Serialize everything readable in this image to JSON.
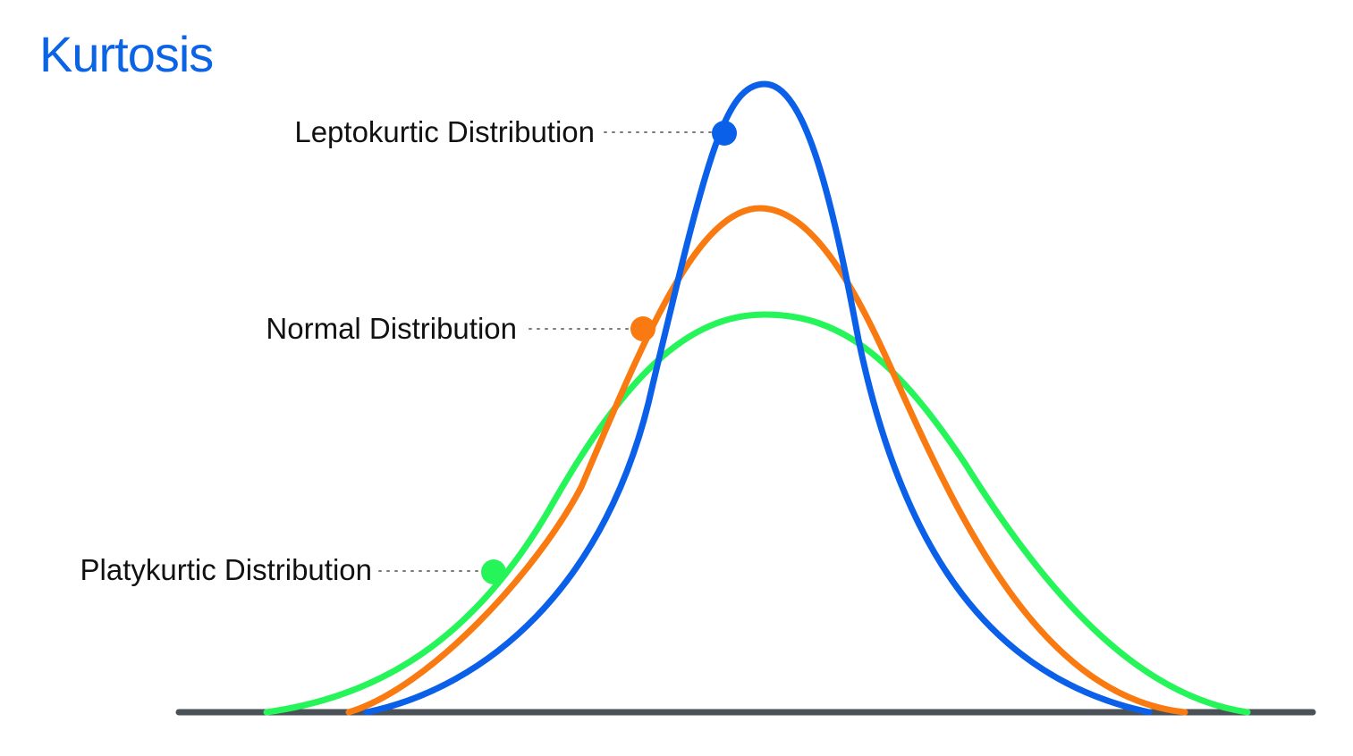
{
  "title": "Kurtosis",
  "colors": {
    "title": "#0b63e5",
    "leptokurtic": "#0a60e8",
    "normal": "#f97a10",
    "platykurtic": "#26f55a",
    "baseline": "#4a5257",
    "leader": "#7a7a7a"
  },
  "curves": [
    {
      "key": "leptokurtic",
      "label": "Leptokurtic Distribution"
    },
    {
      "key": "normal",
      "label": "Normal Distribution"
    },
    {
      "key": "platykurtic",
      "label": "Platykurtic Distribution"
    }
  ]
}
